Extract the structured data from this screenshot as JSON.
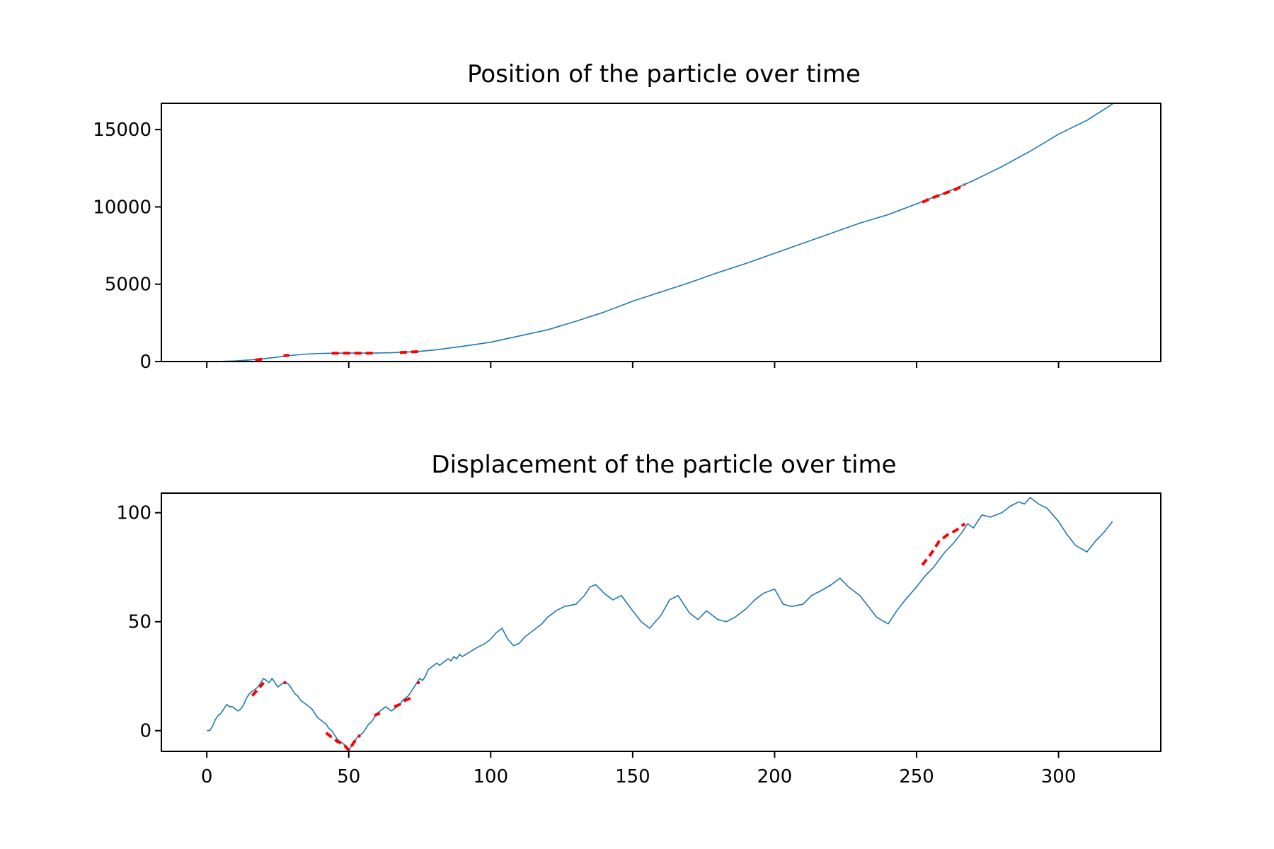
{
  "chart_data": [
    {
      "type": "line",
      "title": "Position of the particle over time",
      "xlabel": "",
      "ylabel": "",
      "xlim": [
        -16,
        336
      ],
      "ylim": [
        0,
        16700
      ],
      "x_ticks": [
        0,
        50,
        100,
        150,
        200,
        250,
        300
      ],
      "x_tick_labels_shown": false,
      "y_ticks": [
        0,
        5000,
        10000,
        15000
      ],
      "y_tick_labels": [
        "0",
        "5000",
        "10000",
        "15000"
      ],
      "grid": false,
      "line_color": "#1f77b4",
      "highlight_color": "#ff0000",
      "series": [
        {
          "style": "solid",
          "x": [
            0,
            5,
            10,
            15,
            20,
            25,
            30,
            35,
            40,
            45,
            50,
            55,
            60,
            65,
            70,
            75,
            80,
            90,
            100,
            110,
            120,
            130,
            140,
            150,
            160,
            170,
            180,
            190,
            200,
            210,
            220,
            230,
            240,
            250,
            260,
            270,
            280,
            290,
            300,
            310,
            319
          ],
          "y": [
            0,
            10,
            40,
            100,
            180,
            290,
            400,
            480,
            520,
            540,
            545,
            545,
            550,
            570,
            610,
            660,
            740,
            980,
            1250,
            1650,
            2050,
            2600,
            3200,
            3900,
            4500,
            5100,
            5750,
            6350,
            7000,
            7650,
            8300,
            8950,
            9500,
            10200,
            10900,
            11700,
            12600,
            13600,
            14700,
            15600,
            16650
          ]
        }
      ],
      "highlight_segments": [
        {
          "x": [
            17,
            19,
            21
          ],
          "y": [
            100,
            140,
            180
          ]
        },
        {
          "x": [
            27,
            29
          ],
          "y": [
            370,
            410
          ]
        },
        {
          "x": [
            44,
            46,
            48,
            50,
            52,
            54,
            56,
            58,
            60
          ],
          "y": [
            535,
            540,
            542,
            545,
            545,
            545,
            545,
            545,
            550
          ]
        },
        {
          "x": [
            68,
            70,
            72,
            74,
            76
          ],
          "y": [
            580,
            600,
            620,
            640,
            670
          ]
        },
        {
          "x": [
            252,
            255,
            258,
            261,
            264,
            267
          ],
          "y": [
            10300,
            10550,
            10750,
            10950,
            11150,
            11450
          ]
        }
      ]
    },
    {
      "type": "line",
      "title": "Displacement of the particle over time",
      "xlabel": "",
      "ylabel": "",
      "xlim": [
        -16,
        336
      ],
      "ylim": [
        -9.5,
        109
      ],
      "x_ticks": [
        0,
        50,
        100,
        150,
        200,
        250,
        300
      ],
      "x_tick_labels": [
        "0",
        "50",
        "100",
        "150",
        "200",
        "250",
        "300"
      ],
      "y_ticks": [
        0,
        50,
        100
      ],
      "y_tick_labels": [
        "0",
        "50",
        "100"
      ],
      "grid": false,
      "line_color": "#1f77b4",
      "highlight_color": "#ff0000",
      "series": [
        {
          "style": "solid",
          "x": [
            0,
            1,
            2,
            3,
            4,
            5,
            6,
            7,
            8,
            9,
            10,
            11,
            12,
            13,
            14,
            15,
            16,
            17,
            18,
            19,
            20,
            21,
            22,
            23,
            24,
            25,
            26,
            27,
            28,
            29,
            30,
            31,
            32,
            33,
            34,
            35,
            36,
            37,
            38,
            39,
            40,
            41,
            42,
            43,
            44,
            45,
            46,
            47,
            48,
            49,
            50,
            51,
            52,
            53,
            54,
            55,
            56,
            57,
            58,
            59,
            60,
            61,
            62,
            63,
            64,
            65,
            66,
            67,
            68,
            69,
            70,
            71,
            72,
            73,
            74,
            75,
            76,
            77,
            78,
            79,
            80,
            81,
            82,
            83,
            84,
            85,
            86,
            87,
            88,
            89,
            90,
            95,
            98,
            100,
            102,
            104,
            106,
            108,
            110,
            112,
            115,
            118,
            120,
            123,
            126,
            130,
            133,
            135,
            137,
            140,
            143,
            146,
            150,
            153,
            156,
            160,
            163,
            166,
            170,
            173,
            176,
            180,
            183,
            186,
            190,
            193,
            196,
            200,
            203,
            206,
            210,
            213,
            216,
            220,
            223,
            226,
            230,
            233,
            236,
            240,
            243,
            246,
            250,
            253,
            256,
            260,
            263,
            266,
            268,
            270,
            273,
            276,
            280,
            283,
            286,
            288,
            290,
            293,
            296,
            300,
            303,
            306,
            310,
            313,
            316,
            319
          ],
          "y": [
            0,
            0,
            2,
            5,
            7,
            8,
            10,
            12,
            11,
            11,
            10,
            9,
            10,
            12,
            15,
            17,
            18,
            19,
            20,
            22,
            24,
            23,
            22,
            24,
            22,
            20,
            21,
            22,
            22,
            21,
            19,
            17,
            16,
            14,
            13,
            12,
            11,
            10,
            8,
            6,
            5,
            4,
            3,
            1,
            0,
            -2,
            -4,
            -5,
            -6,
            -7,
            -9,
            -7,
            -5,
            -3,
            -2,
            -1,
            1,
            3,
            4,
            6,
            8,
            9,
            10,
            11,
            10,
            9,
            10,
            11,
            12,
            14,
            15,
            16,
            18,
            20,
            22,
            24,
            23,
            25,
            28,
            29,
            30,
            31,
            30,
            31,
            32,
            33,
            32,
            34,
            33,
            35,
            34,
            38,
            40,
            42,
            45,
            47,
            42,
            39,
            40,
            43,
            46,
            49,
            52,
            55,
            57,
            58,
            62,
            66,
            67,
            63,
            60,
            62,
            55,
            50,
            47,
            53,
            60,
            62,
            54,
            51,
            55,
            51,
            50,
            52,
            56,
            60,
            63,
            65,
            58,
            57,
            58,
            62,
            64,
            67,
            70,
            66,
            62,
            57,
            52,
            49,
            55,
            60,
            66,
            71,
            75,
            82,
            86,
            91,
            95,
            93,
            99,
            98,
            100,
            103,
            105,
            104,
            107,
            104,
            102,
            96,
            90,
            85,
            82,
            87,
            91,
            96
          ]
        }
      ],
      "highlight_segments": [
        {
          "x": [
            16,
            18,
            20
          ],
          "y": [
            16,
            19,
            22
          ]
        },
        {
          "x": [
            27,
            28
          ],
          "y": [
            22,
            22
          ]
        },
        {
          "x": [
            42,
            44,
            46,
            48,
            50,
            52,
            54
          ],
          "y": [
            -1,
            -3,
            -5,
            -6,
            -9,
            -5,
            -2
          ]
        },
        {
          "x": [
            59,
            61
          ],
          "y": [
            7,
            8
          ]
        },
        {
          "x": [
            66,
            68,
            70,
            72
          ],
          "y": [
            11,
            12,
            14,
            15
          ]
        },
        {
          "x": [
            74,
            75
          ],
          "y": [
            22,
            22
          ]
        },
        {
          "x": [
            252,
            255,
            258,
            261,
            264,
            267
          ],
          "y": [
            76,
            81,
            87,
            90,
            92,
            95
          ]
        }
      ]
    }
  ]
}
